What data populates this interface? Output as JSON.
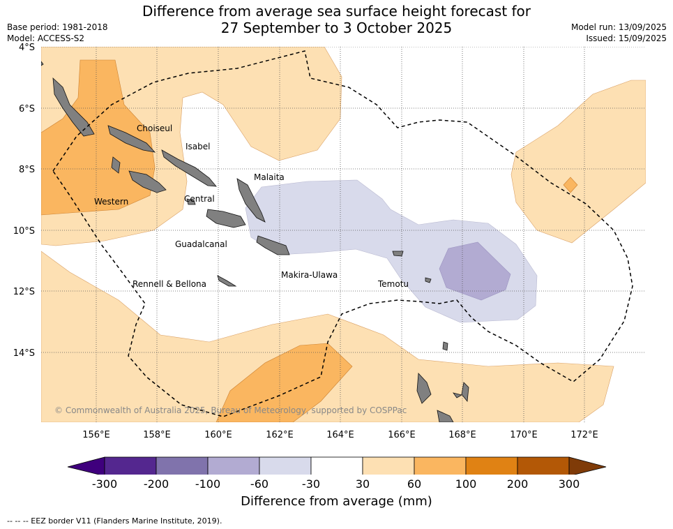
{
  "header": {
    "title_line1": "Difference from average sea surface height forecast for",
    "title_line2": "27 September to 3 October 2025",
    "base_period": "Base period: 1981-2018",
    "model": "Model: ACCESS-S2",
    "model_run": "Model run: 13/09/2025",
    "issued": "Issued: 15/09/2025"
  },
  "map": {
    "lat_labels": [
      "4°S",
      "6°S",
      "8°S",
      "10°S",
      "12°S",
      "14°S"
    ],
    "lon_labels": [
      "156°E",
      "158°E",
      "160°E",
      "162°E",
      "164°E",
      "166°E",
      "168°E",
      "170°E",
      "172°E"
    ],
    "places": {
      "choiseul": "Choiseul",
      "isabel": "Isabel",
      "malaita": "Malaita",
      "western": "Western",
      "central": "Central",
      "guadalcanal": "Guadalcanal",
      "rennell": "Rennell & Bellona",
      "makira": "Makira-Ulawa",
      "temotu": "Temotu"
    },
    "copyright": "© Commonwealth of Australia 2025, Bureau of Meteorology, supported by COSPPac",
    "land_color": "#808080"
  },
  "colorbar": {
    "ticks": [
      "-300",
      "-200",
      "-100",
      "-60",
      "-30",
      "30",
      "60",
      "100",
      "200",
      "300"
    ],
    "colors": [
      "#3f007d",
      "#54278f",
      "#8073ac",
      "#b2abd2",
      "#d8daeb",
      "#ffffff",
      "#fde0b3",
      "#fab660",
      "#e08214",
      "#b35806",
      "#7f3b08"
    ],
    "label": "Difference from average (mm)"
  },
  "footnote": "--  --  -- EEZ border V11 (Flanders Marine Institute, 2019)."
}
